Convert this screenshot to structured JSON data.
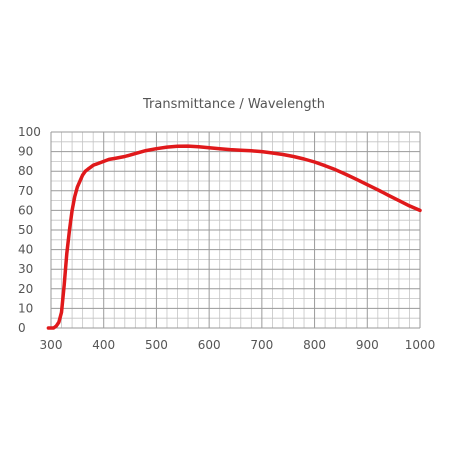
{
  "chart_data": {
    "type": "line",
    "title": "Transmittance / Wavelength",
    "xlabel": "",
    "ylabel": "",
    "xlim": [
      300,
      1000
    ],
    "ylim": [
      0,
      100
    ],
    "x_ticks": [
      300,
      400,
      500,
      600,
      700,
      800,
      900,
      1000
    ],
    "y_ticks": [
      0,
      10,
      20,
      30,
      40,
      50,
      60,
      70,
      80,
      90,
      100
    ],
    "x_minor_step": 20,
    "y_minor_step": 5,
    "grid": true,
    "legend": "none",
    "colors": {
      "line": "#e0191b",
      "grid_major": "#9a9a9a",
      "grid_minor": "#c4c4c4",
      "text": "#555555"
    },
    "series": [
      {
        "x": [
          295,
          300,
          305,
          310,
          315,
          320,
          325,
          330,
          335,
          340,
          345,
          350,
          355,
          360,
          365,
          370,
          375,
          380,
          385,
          390,
          400,
          410,
          420,
          440,
          460,
          480,
          500,
          520,
          540,
          560,
          580,
          600,
          620,
          640,
          660,
          680,
          700,
          720,
          740,
          760,
          780,
          800,
          820,
          840,
          860,
          880,
          900,
          920,
          940,
          960,
          980,
          1000
        ],
        "y": [
          0,
          0,
          0,
          1,
          3,
          8,
          22,
          38,
          50,
          60,
          67,
          72,
          75,
          78,
          80,
          81,
          82,
          83,
          83.5,
          84,
          85,
          86,
          86.5,
          87.5,
          89,
          90.5,
          91.5,
          92.3,
          92.7,
          92.8,
          92.5,
          92,
          91.5,
          91,
          90.7,
          90.4,
          90,
          89.3,
          88.5,
          87.5,
          86.2,
          84.7,
          82.8,
          80.7,
          78.3,
          75.8,
          73.1,
          70.5,
          67.7,
          65,
          62.3,
          60
        ]
      }
    ]
  }
}
